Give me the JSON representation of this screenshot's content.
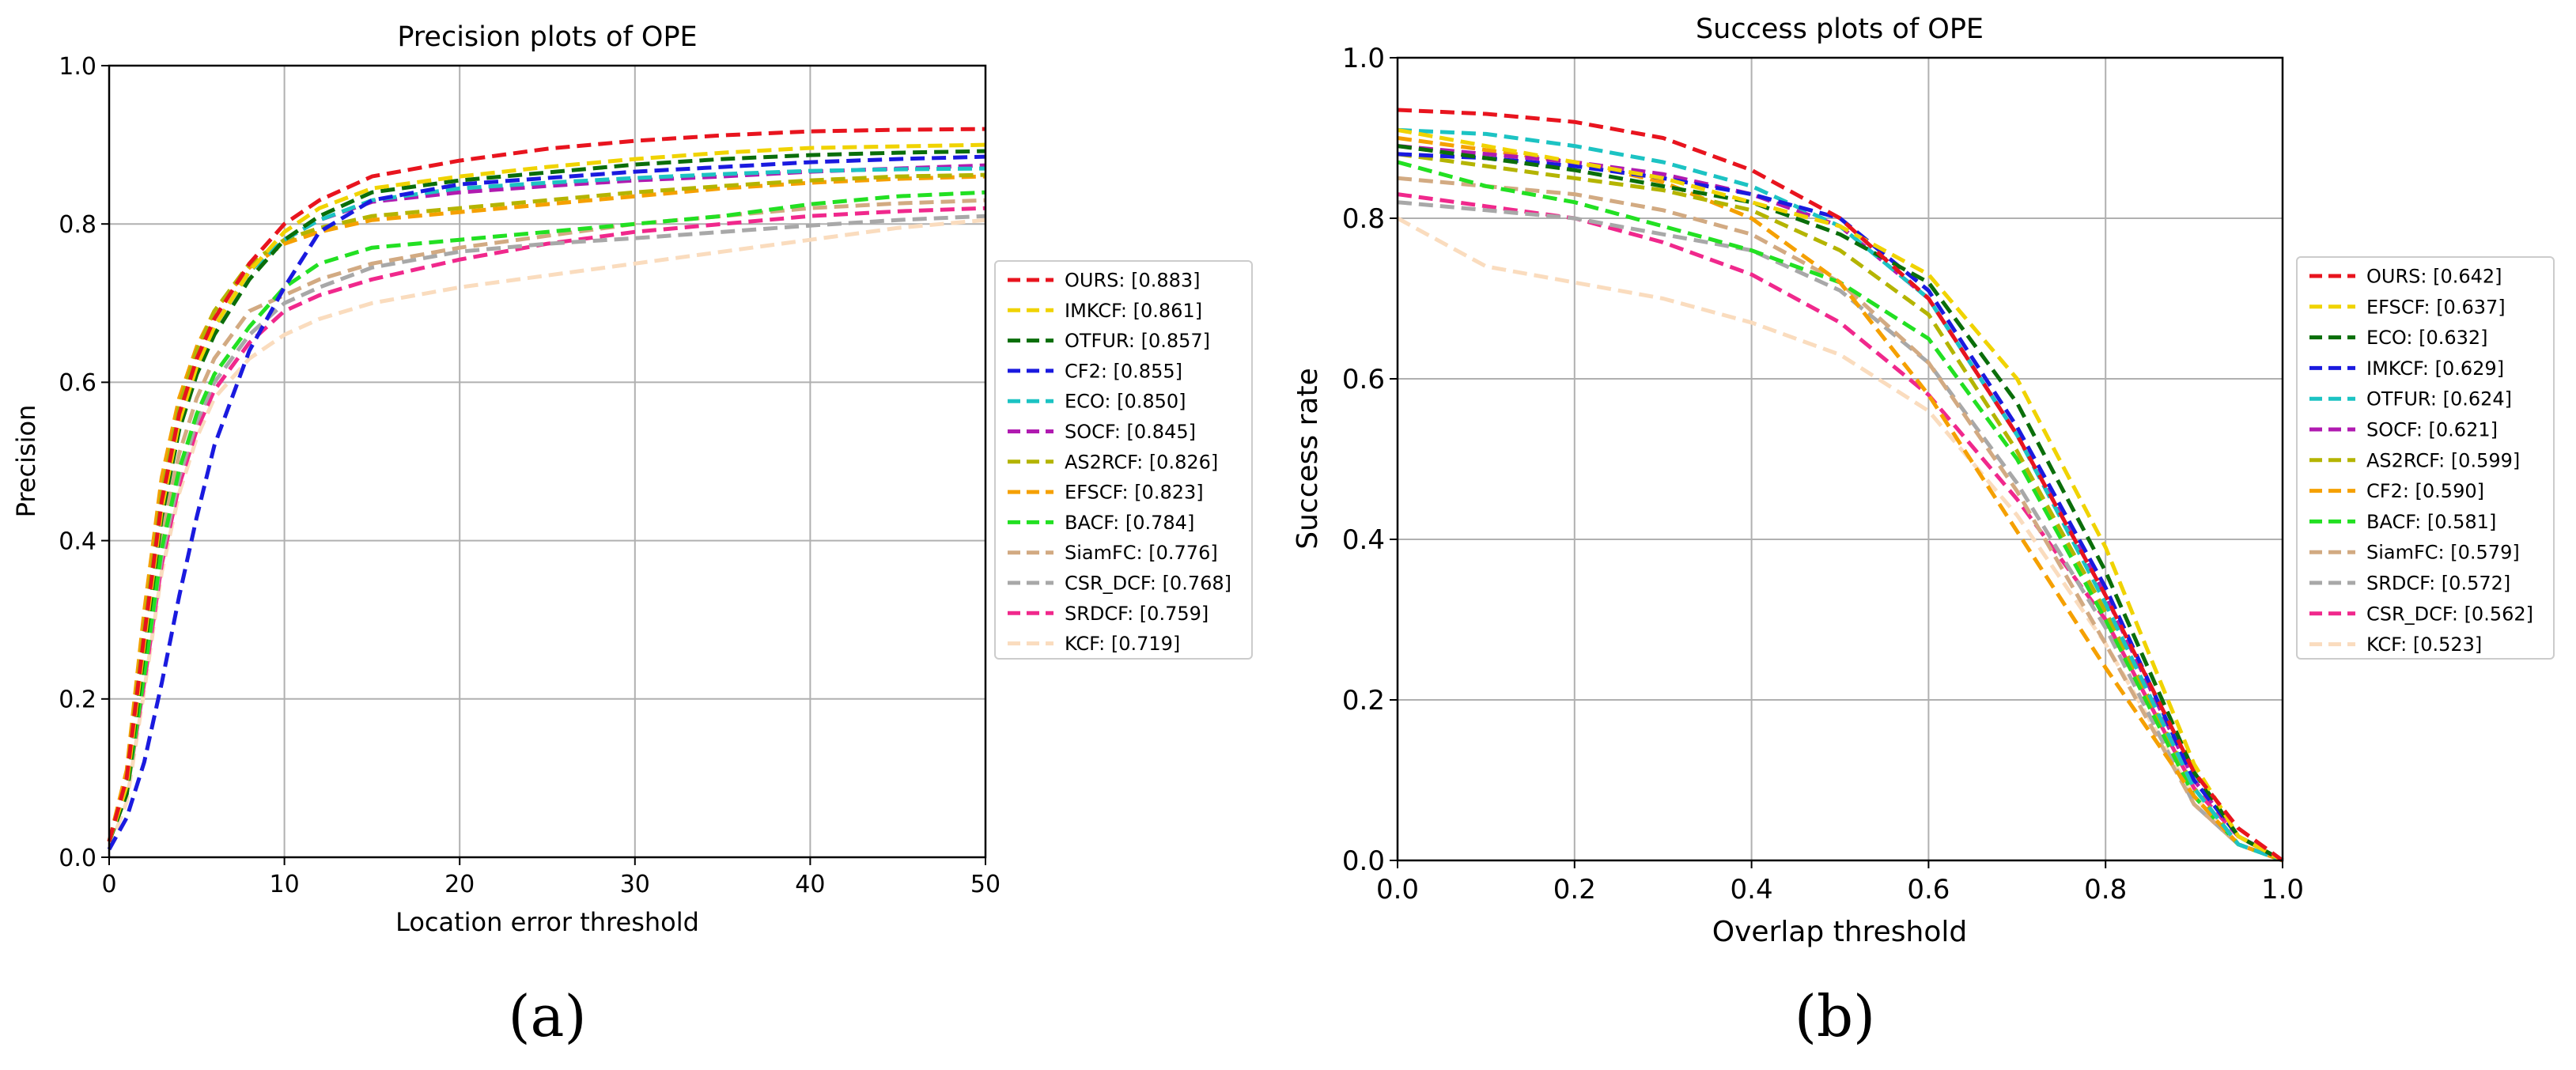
{
  "chart_data": [
    {
      "type": "line",
      "title": "Precision plots of OPE",
      "xlabel": "Location error threshold",
      "ylabel": "Precision",
      "xlim": [
        0,
        50
      ],
      "ylim": [
        0,
        1.0
      ],
      "xticks": [
        "0",
        "10",
        "20",
        "30",
        "40",
        "50"
      ],
      "yticks": [
        "0.0",
        "0.2",
        "0.4",
        "0.6",
        "0.8",
        "1.0"
      ],
      "grid": true,
      "legend_position": "right-outside",
      "caption": "(a)",
      "x": [
        0,
        1,
        2,
        3,
        4,
        5,
        6,
        8,
        10,
        12,
        15,
        20,
        25,
        30,
        35,
        40,
        45,
        50
      ],
      "series": [
        {
          "name": "OURS: [0.883]",
          "color": "#e8141e",
          "values": [
            0.02,
            0.1,
            0.28,
            0.45,
            0.56,
            0.63,
            0.68,
            0.75,
            0.8,
            0.83,
            0.86,
            0.88,
            0.895,
            0.905,
            0.912,
            0.917,
            0.919,
            0.92
          ]
        },
        {
          "name": "IMKCF: [0.861]",
          "color": "#f0d300",
          "values": [
            0.02,
            0.09,
            0.27,
            0.44,
            0.55,
            0.62,
            0.67,
            0.74,
            0.79,
            0.82,
            0.845,
            0.86,
            0.872,
            0.882,
            0.89,
            0.896,
            0.898,
            0.9
          ]
        },
        {
          "name": "OTFUR: [0.857]",
          "color": "#0a6e0a",
          "values": [
            0.02,
            0.08,
            0.26,
            0.43,
            0.54,
            0.61,
            0.66,
            0.73,
            0.78,
            0.81,
            0.84,
            0.855,
            0.865,
            0.875,
            0.882,
            0.887,
            0.89,
            0.892
          ]
        },
        {
          "name": "CF2: [0.855]",
          "color": "#1a1adf",
          "values": [
            0.01,
            0.05,
            0.12,
            0.22,
            0.33,
            0.43,
            0.52,
            0.64,
            0.72,
            0.79,
            0.83,
            0.85,
            0.858,
            0.866,
            0.872,
            0.878,
            0.882,
            0.885
          ]
        },
        {
          "name": "ECO: [0.850]",
          "color": "#1cc3c3",
          "values": [
            0.02,
            0.09,
            0.27,
            0.44,
            0.55,
            0.62,
            0.67,
            0.74,
            0.78,
            0.805,
            0.83,
            0.845,
            0.852,
            0.858,
            0.863,
            0.867,
            0.869,
            0.87
          ]
        },
        {
          "name": "SOCF: [0.845]",
          "color": "#b01ab0",
          "values": [
            0.02,
            0.09,
            0.27,
            0.44,
            0.55,
            0.62,
            0.67,
            0.74,
            0.78,
            0.805,
            0.828,
            0.84,
            0.848,
            0.855,
            0.86,
            0.866,
            0.87,
            0.874
          ]
        },
        {
          "name": "AS2RCF: [0.826]",
          "color": "#b4b400",
          "values": [
            0.02,
            0.1,
            0.29,
            0.46,
            0.57,
            0.64,
            0.69,
            0.75,
            0.78,
            0.795,
            0.81,
            0.82,
            0.83,
            0.84,
            0.848,
            0.855,
            0.86,
            0.862
          ]
        },
        {
          "name": "EFSCF: [0.823]",
          "color": "#f5a000",
          "values": [
            0.02,
            0.11,
            0.31,
            0.48,
            0.58,
            0.645,
            0.69,
            0.745,
            0.775,
            0.79,
            0.805,
            0.815,
            0.825,
            0.835,
            0.845,
            0.852,
            0.857,
            0.86
          ]
        },
        {
          "name": "BACF: [0.784]",
          "color": "#22e022",
          "values": [
            0.02,
            0.08,
            0.23,
            0.39,
            0.49,
            0.56,
            0.61,
            0.67,
            0.72,
            0.75,
            0.77,
            0.78,
            0.79,
            0.8,
            0.81,
            0.825,
            0.835,
            0.84
          ]
        },
        {
          "name": "SiamFC: [0.776]",
          "color": "#d2aa82",
          "values": [
            0.02,
            0.09,
            0.25,
            0.41,
            0.51,
            0.58,
            0.63,
            0.69,
            0.71,
            0.73,
            0.75,
            0.77,
            0.785,
            0.8,
            0.81,
            0.82,
            0.826,
            0.83
          ]
        },
        {
          "name": "CSR_DCF: [0.768]",
          "color": "#a8a8a8",
          "values": [
            0.02,
            0.08,
            0.23,
            0.38,
            0.48,
            0.55,
            0.6,
            0.66,
            0.7,
            0.72,
            0.745,
            0.765,
            0.775,
            0.782,
            0.79,
            0.798,
            0.805,
            0.81
          ]
        },
        {
          "name": "SRDCF: [0.759]",
          "color": "#f0288c",
          "values": [
            0.02,
            0.08,
            0.22,
            0.37,
            0.47,
            0.54,
            0.59,
            0.65,
            0.69,
            0.71,
            0.73,
            0.755,
            0.775,
            0.79,
            0.8,
            0.81,
            0.816,
            0.82
          ]
        },
        {
          "name": "KCF: [0.719]",
          "color": "#fadcbe",
          "values": [
            0.01,
            0.07,
            0.21,
            0.36,
            0.46,
            0.53,
            0.58,
            0.63,
            0.66,
            0.68,
            0.7,
            0.72,
            0.735,
            0.75,
            0.765,
            0.78,
            0.795,
            0.805
          ]
        }
      ]
    },
    {
      "type": "line",
      "title": "Success plots of OPE",
      "xlabel": "Overlap threshold",
      "ylabel": "Success rate",
      "xlim": [
        0,
        1.0
      ],
      "ylim": [
        0,
        1.0
      ],
      "xticks": [
        "0.0",
        "0.2",
        "0.4",
        "0.6",
        "0.8",
        "1.0"
      ],
      "yticks": [
        "0.0",
        "0.2",
        "0.4",
        "0.6",
        "0.8",
        "1.0"
      ],
      "grid": true,
      "legend_position": "right-outside",
      "caption": "(b)",
      "x": [
        0,
        0.1,
        0.2,
        0.3,
        0.4,
        0.5,
        0.6,
        0.7,
        0.8,
        0.9,
        0.95,
        1.0
      ],
      "series": [
        {
          "name": "OURS: [0.642]",
          "color": "#e8141e",
          "values": [
            0.935,
            0.93,
            0.92,
            0.9,
            0.86,
            0.8,
            0.7,
            0.53,
            0.33,
            0.11,
            0.04,
            0.0
          ]
        },
        {
          "name": "EFSCF: [0.637]",
          "color": "#f0d300",
          "values": [
            0.91,
            0.89,
            0.87,
            0.85,
            0.82,
            0.79,
            0.73,
            0.6,
            0.39,
            0.12,
            0.03,
            0.0
          ]
        },
        {
          "name": "ECO: [0.632]",
          "color": "#0a6e0a",
          "values": [
            0.89,
            0.875,
            0.86,
            0.84,
            0.82,
            0.78,
            0.72,
            0.57,
            0.36,
            0.11,
            0.03,
            0.0
          ]
        },
        {
          "name": "IMKCF: [0.629]",
          "color": "#1a1adf",
          "values": [
            0.88,
            0.875,
            0.865,
            0.85,
            0.83,
            0.8,
            0.71,
            0.54,
            0.34,
            0.1,
            0.03,
            0.0
          ]
        },
        {
          "name": "OTFUR: [0.624]",
          "color": "#1cc3c3",
          "values": [
            0.91,
            0.905,
            0.89,
            0.87,
            0.84,
            0.79,
            0.7,
            0.53,
            0.32,
            0.09,
            0.02,
            0.0
          ]
        },
        {
          "name": "SOCF: [0.621]",
          "color": "#b01ab0",
          "values": [
            0.89,
            0.88,
            0.87,
            0.855,
            0.83,
            0.79,
            0.7,
            0.53,
            0.33,
            0.1,
            0.03,
            0.0
          ]
        },
        {
          "name": "AS2RCF: [0.599]",
          "color": "#b4b400",
          "values": [
            0.88,
            0.865,
            0.85,
            0.835,
            0.81,
            0.76,
            0.68,
            0.51,
            0.31,
            0.09,
            0.02,
            0.0
          ]
        },
        {
          "name": "CF2: [0.590]",
          "color": "#f5a000",
          "values": [
            0.9,
            0.885,
            0.87,
            0.845,
            0.8,
            0.72,
            0.58,
            0.41,
            0.24,
            0.08,
            0.02,
            0.0
          ]
        },
        {
          "name": "BACF: [0.581]",
          "color": "#22e022",
          "values": [
            0.87,
            0.84,
            0.82,
            0.79,
            0.76,
            0.72,
            0.65,
            0.5,
            0.3,
            0.08,
            0.02,
            0.0
          ]
        },
        {
          "name": "SiamFC: [0.579]",
          "color": "#d2aa82",
          "values": [
            0.85,
            0.84,
            0.83,
            0.81,
            0.78,
            0.72,
            0.62,
            0.46,
            0.27,
            0.07,
            0.02,
            0.0
          ]
        },
        {
          "name": "SRDCF: [0.572]",
          "color": "#a8a8a8",
          "values": [
            0.82,
            0.81,
            0.8,
            0.78,
            0.76,
            0.71,
            0.62,
            0.47,
            0.29,
            0.07,
            0.02,
            0.0
          ]
        },
        {
          "name": "CSR_DCF: [0.562]",
          "color": "#f0288c",
          "values": [
            0.83,
            0.815,
            0.8,
            0.77,
            0.73,
            0.67,
            0.58,
            0.45,
            0.3,
            0.09,
            0.03,
            0.0
          ]
        },
        {
          "name": "KCF: [0.523]",
          "color": "#fadcbe",
          "values": [
            0.8,
            0.74,
            0.72,
            0.7,
            0.67,
            0.63,
            0.56,
            0.43,
            0.27,
            0.08,
            0.02,
            0.0
          ]
        }
      ]
    }
  ]
}
